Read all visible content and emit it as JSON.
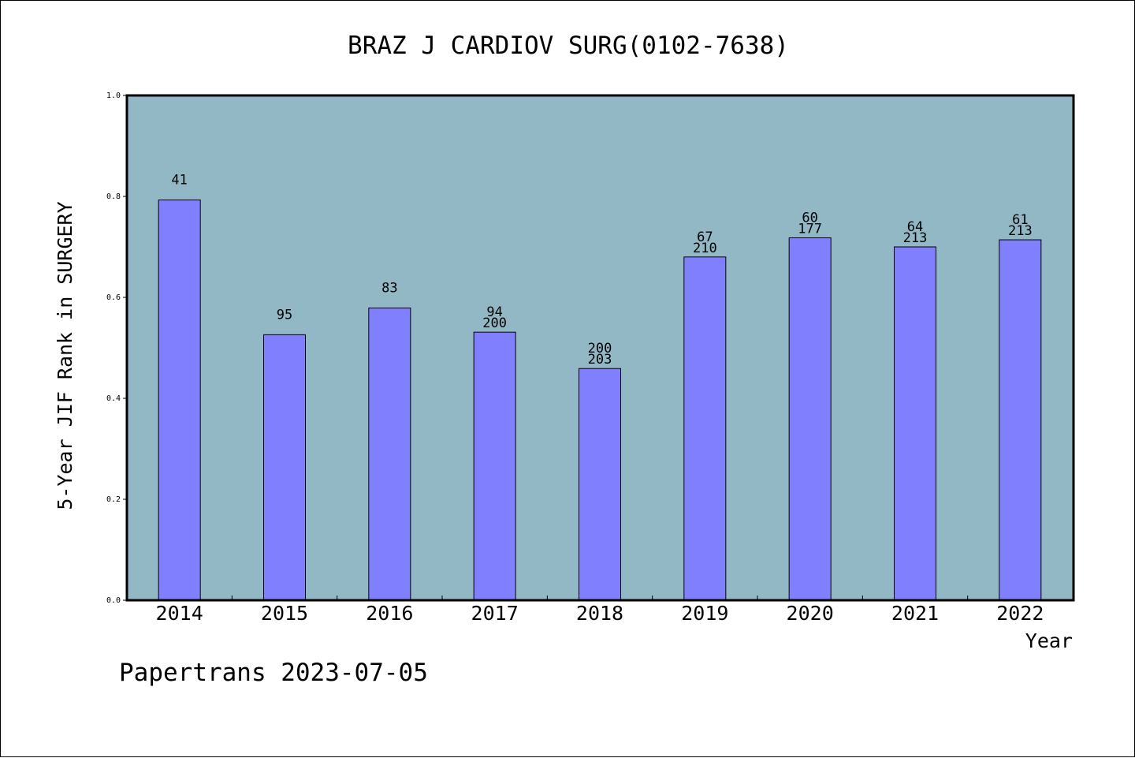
{
  "colors": {
    "plot_background": "#92b8c6",
    "bar_fill": "#8080ff",
    "bar_stroke": "#000000",
    "axis": "#000000",
    "text": "#000000"
  },
  "footer": {
    "source": "Papertrans",
    "date": "2023-07-05"
  },
  "chart_data": {
    "type": "bar",
    "title": "BRAZ J CARDIOV SURG(0102-7638)",
    "xlabel": "Year",
    "ylabel": "5-Year JIF Rank in SURGERY",
    "ylim": [
      0,
      1.0
    ],
    "yticks": [
      "0.0",
      "0.2",
      "0.4",
      "0.6",
      "0.8",
      "1.0"
    ],
    "grid": false,
    "categories": [
      "2014",
      "2015",
      "2016",
      "2017",
      "2018",
      "2019",
      "2020",
      "2021",
      "2022"
    ],
    "values": [
      0.793,
      0.526,
      0.579,
      0.531,
      0.459,
      0.68,
      0.718,
      0.7,
      0.714
    ],
    "labels": [
      [
        "41"
      ],
      [
        "95"
      ],
      [
        "83"
      ],
      [
        "94",
        "200"
      ],
      [
        "200",
        "203"
      ],
      [
        "67",
        "210"
      ],
      [
        "60",
        "177"
      ],
      [
        "64",
        "213"
      ],
      [
        "61",
        "213"
      ]
    ]
  }
}
